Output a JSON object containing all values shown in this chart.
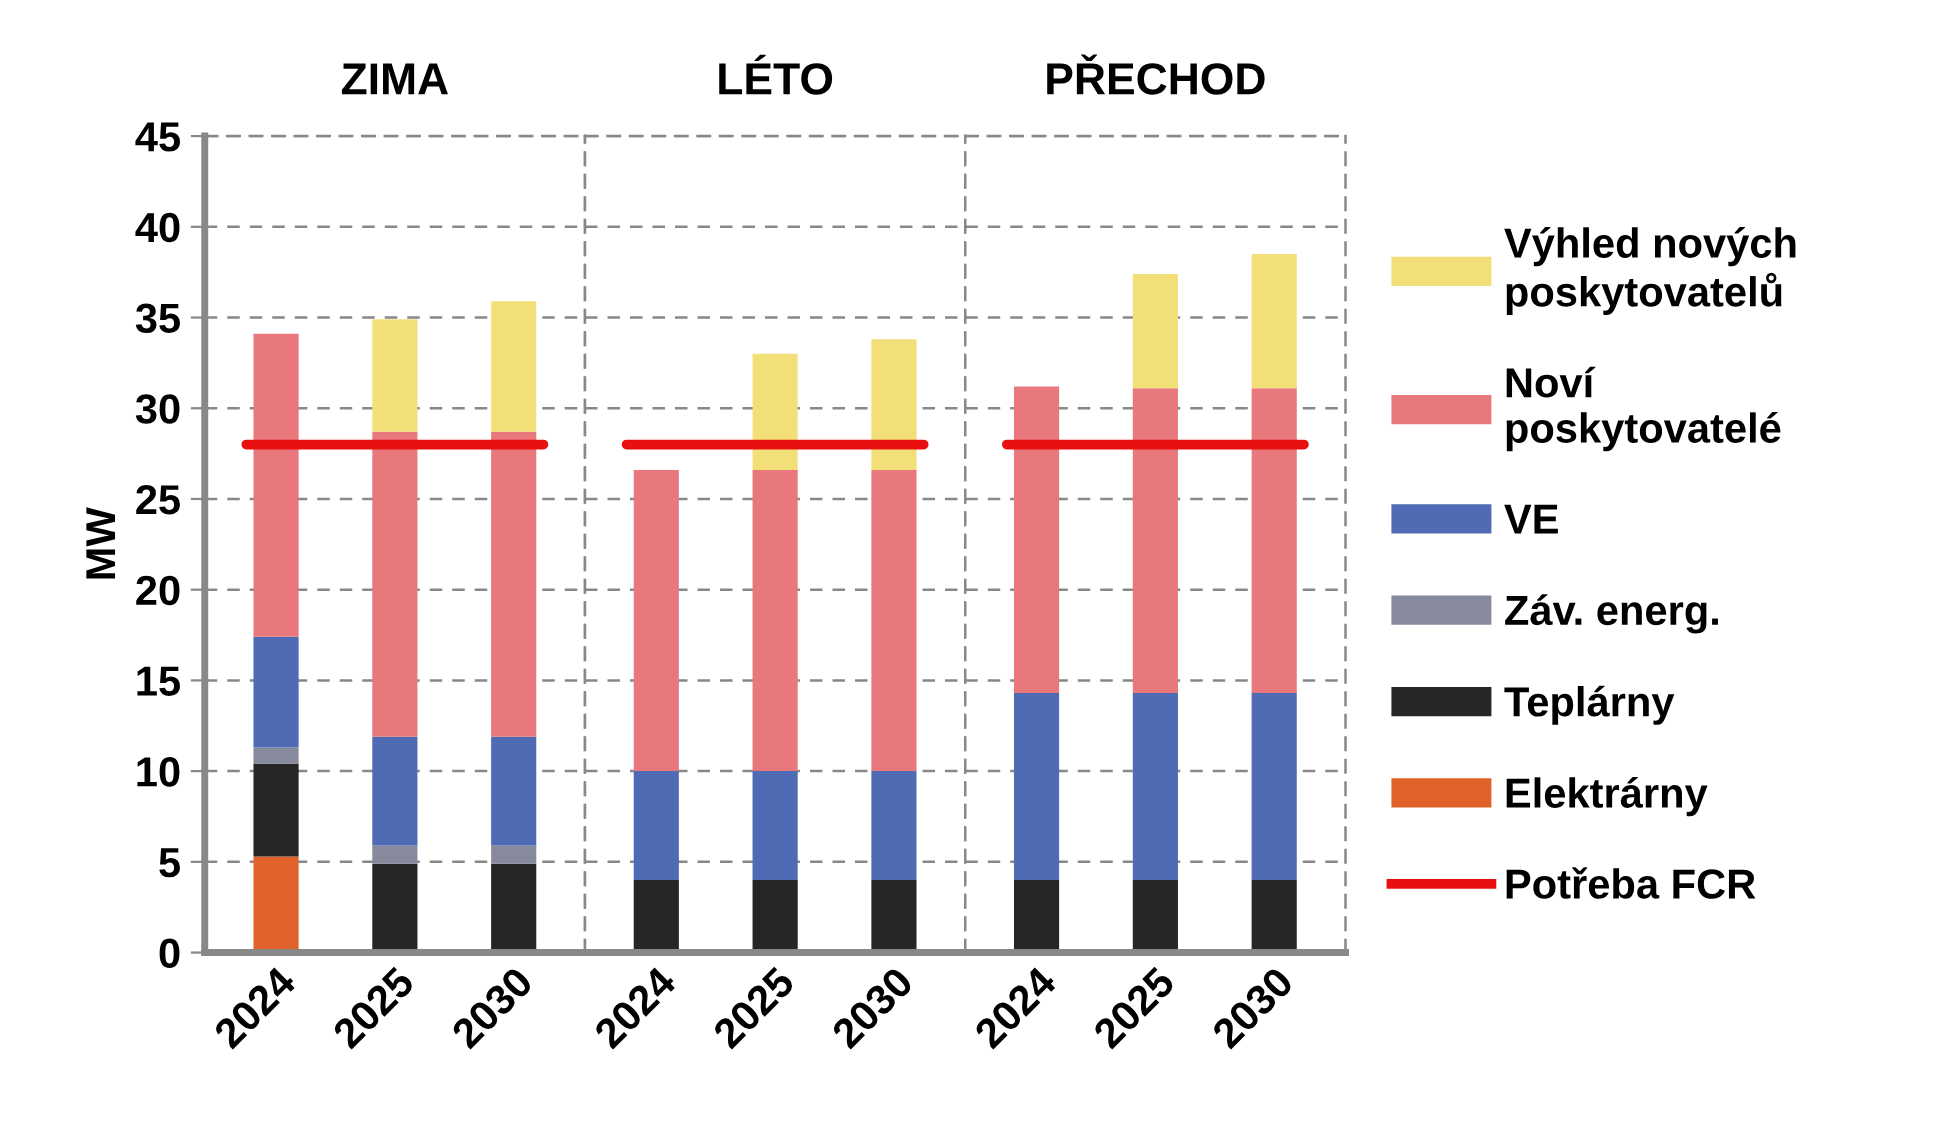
{
  "chart_data": [
    {
      "type": "bar",
      "title": "ZIMA",
      "ylabel": "MW",
      "categories": [
        "2024",
        "2025",
        "2030"
      ],
      "stacked": true,
      "ylim": [
        0,
        45
      ],
      "yticks": [
        0,
        5,
        10,
        15,
        20,
        25,
        30,
        35,
        40,
        45
      ],
      "grid": "y",
      "legend": "right",
      "series": [
        {
          "name": "Elektrárny",
          "color": "#e0622a",
          "values": [
            5.3,
            null,
            null
          ]
        },
        {
          "name": "Teplárny",
          "color": "#262626",
          "values": [
            5.1,
            4.9,
            4.9
          ]
        },
        {
          "name": "Záv. energ.",
          "color": "#868a9c",
          "values": [
            0.9,
            1.0,
            1.0
          ]
        },
        {
          "name": "VE",
          "color": "#4f6bb3",
          "values": [
            6.1,
            6.0,
            6.0
          ]
        },
        {
          "name": "Noví poskytovatelé",
          "color": "#e8787c",
          "values": [
            16.7,
            16.8,
            16.8
          ]
        },
        {
          "name": "Výhled nových poskytovatelů",
          "color": "#f3df78",
          "values": [
            null,
            6.2,
            7.2
          ]
        }
      ],
      "ref_lines": [
        {
          "axis": "y",
          "value": 28,
          "label": "Potřeba FCR",
          "color": "#e81010"
        }
      ]
    },
    {
      "type": "bar",
      "title": "LÉTO",
      "categories": [
        "2024",
        "2025",
        "2030"
      ],
      "stacked": true,
      "ylim": [
        0,
        45
      ],
      "yticks": [
        0,
        5,
        10,
        15,
        20,
        25,
        30,
        35,
        40,
        45
      ],
      "grid": "y",
      "tick_labels": "x",
      "series": [
        {
          "color": "#262626",
          "values": [
            4,
            4,
            4
          ]
        },
        {
          "color": "#4f6bb3",
          "values": [
            6,
            6,
            6
          ]
        },
        {
          "color": "#e8787c",
          "values": [
            16.6,
            16.6,
            16.6
          ]
        },
        {
          "color": "#f3df78",
          "values": [
            null,
            6.4,
            7.2
          ]
        }
      ],
      "ref_lines": [
        {
          "axis": "y",
          "value": 28,
          "color": "#e81010"
        }
      ]
    },
    {
      "type": "bar",
      "title": "PŘECHOD",
      "categories": [
        "2024",
        "2025",
        "2030"
      ],
      "stacked": true,
      "ylim": [
        0,
        45
      ],
      "yticks": [
        0,
        5,
        10,
        15,
        20,
        25,
        30,
        35,
        40,
        45
      ],
      "grid": "y",
      "tick_labels": "x",
      "series": [
        {
          "color": "#262626",
          "values": [
            4,
            4,
            4
          ]
        },
        {
          "color": "#4f6bb3",
          "values": [
            10.3,
            10.3,
            10.3
          ]
        },
        {
          "color": "#e8787c",
          "values": [
            16.9,
            16.8,
            16.8
          ]
        },
        {
          "color": "#f3df78",
          "values": [
            null,
            6.3,
            7.4
          ]
        }
      ],
      "ref_lines": [
        {
          "axis": "y",
          "value": 28,
          "color": "#e81010"
        }
      ]
    }
  ]
}
